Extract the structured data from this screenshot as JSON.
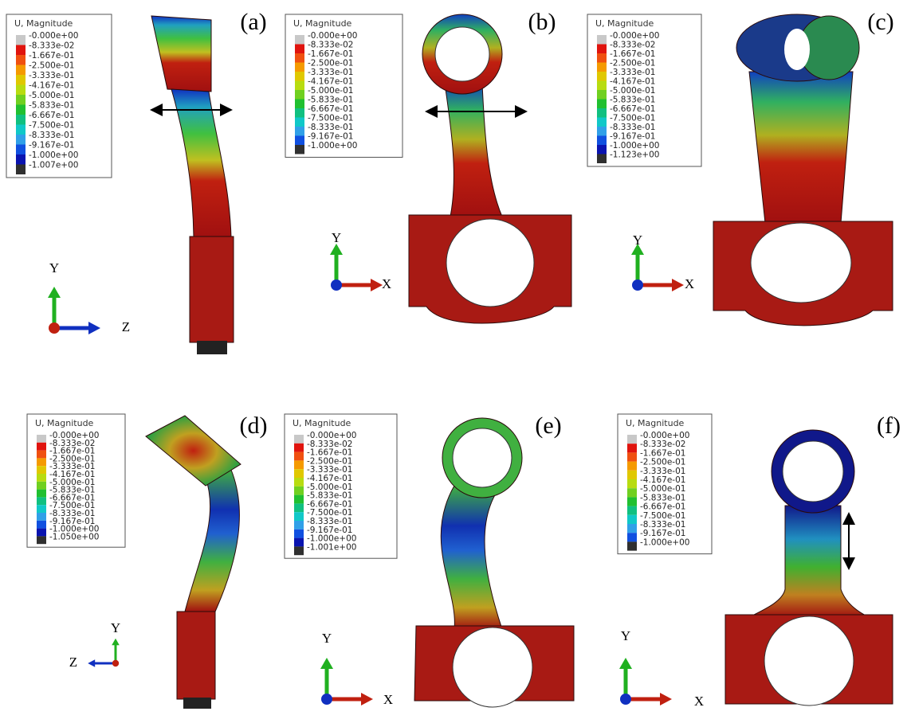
{
  "colormap": [
    "#c8c8c8",
    "#e0140e",
    "#f05010",
    "#f59a00",
    "#e0c800",
    "#b8dc10",
    "#70d020",
    "#20c030",
    "#10c080",
    "#10c8c8",
    "#30a0e8",
    "#1050e0",
    "#0a14b0",
    "#303030"
  ],
  "panels": [
    {
      "label": "(a)",
      "legend": {
        "title": "U, Magnitude",
        "entries": [
          "-0.000e+00",
          "-8.333e-02",
          "-1.667e-01",
          "-2.500e-01",
          "-3.333e-01",
          "-4.167e-01",
          "-5.000e-01",
          "-5.833e-01",
          "-6.667e-01",
          "-7.500e-01",
          "-8.333e-01",
          "-9.167e-01",
          "-1.000e+00",
          "-1.007e+00"
        ]
      },
      "axes": [
        "Y",
        "Z"
      ]
    },
    {
      "label": "(b)",
      "legend": {
        "title": "U, Magnitude",
        "entries": [
          "-0.000e+00",
          "-8.333e-02",
          "-1.667e-01",
          "-2.500e-01",
          "-3.333e-01",
          "-4.167e-01",
          "-5.000e-01",
          "-5.833e-01",
          "-6.667e-01",
          "-7.500e-01",
          "-8.333e-01",
          "-9.167e-01",
          "-1.000e+00"
        ]
      },
      "axes": [
        "Y",
        "X"
      ]
    },
    {
      "label": "(c)",
      "legend": {
        "title": "U, Magnitude",
        "entries": [
          "-0.000e+00",
          "-8.333e-02",
          "-1.667e-01",
          "-2.500e-01",
          "-3.333e-01",
          "-4.167e-01",
          "-5.000e-01",
          "-5.833e-01",
          "-6.667e-01",
          "-7.500e-01",
          "-8.333e-01",
          "-9.167e-01",
          "-1.000e+00",
          "-1.123e+00"
        ]
      },
      "axes": [
        "Y",
        "X"
      ]
    },
    {
      "label": "(d)",
      "legend": {
        "title": "U, Magnitude",
        "entries": [
          "-0.000e+00",
          "-8.333e-02",
          "-1.667e-01",
          "-2.500e-01",
          "-3.333e-01",
          "-4.167e-01",
          "-5.000e-01",
          "-5.833e-01",
          "-6.667e-01",
          "-7.500e-01",
          "-8.333e-01",
          "-9.167e-01",
          "-1.000e+00",
          "-1.050e+00"
        ]
      },
      "axes": [
        "Y",
        "Z"
      ]
    },
    {
      "label": "(e)",
      "legend": {
        "title": "U, Magnitude",
        "entries": [
          "-0.000e+00",
          "-8.333e-02",
          "-1.667e-01",
          "-2.500e-01",
          "-3.333e-01",
          "-4.167e-01",
          "-5.000e-01",
          "-5.833e-01",
          "-6.667e-01",
          "-7.500e-01",
          "-8.333e-01",
          "-9.167e-01",
          "-1.000e+00",
          "-1.001e+00"
        ]
      },
      "axes": [
        "Y",
        "X"
      ]
    },
    {
      "label": "(f)",
      "legend": {
        "title": "U, Magnitude",
        "entries": [
          "-0.000e+00",
          "-8.333e-02",
          "-1.667e-01",
          "-2.500e-01",
          "-3.333e-01",
          "-4.167e-01",
          "-5.000e-01",
          "-5.833e-01",
          "-6.667e-01",
          "-7.500e-01",
          "-8.333e-01",
          "-9.167e-01",
          "-1.000e+00"
        ]
      },
      "axes": [
        "Y",
        "X"
      ]
    }
  ]
}
